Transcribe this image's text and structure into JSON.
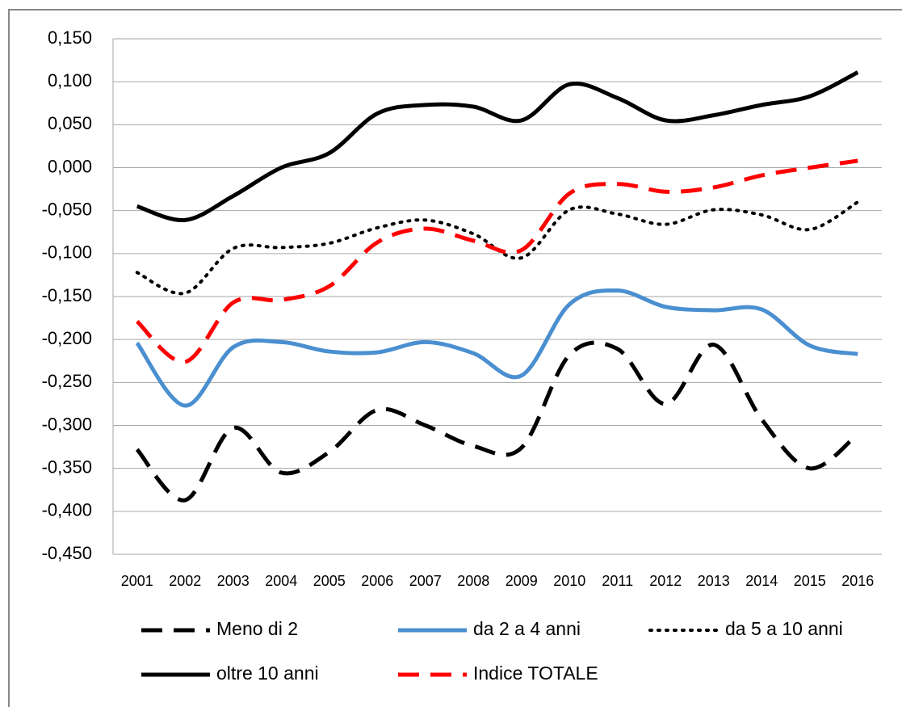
{
  "chart_data": {
    "type": "line",
    "categories": [
      "2001",
      "2002",
      "2003",
      "2004",
      "2005",
      "2006",
      "2007",
      "2008",
      "2009",
      "2010",
      "2011",
      "2012",
      "2013",
      "2014",
      "2015",
      "2016"
    ],
    "series": [
      {
        "name": "Meno di 2",
        "color": "#000000",
        "dash": "dashed",
        "values": [
          -0.328,
          -0.387,
          -0.303,
          -0.355,
          -0.331,
          -0.282,
          -0.3,
          -0.324,
          -0.326,
          -0.218,
          -0.211,
          -0.275,
          -0.206,
          -0.293,
          -0.35,
          -0.31
        ]
      },
      {
        "name": "da 2 a 4 anni",
        "color": "#4a8fd0",
        "dash": "solid",
        "values": [
          -0.204,
          -0.277,
          -0.209,
          -0.203,
          -0.214,
          -0.215,
          -0.203,
          -0.216,
          -0.242,
          -0.159,
          -0.143,
          -0.162,
          -0.166,
          -0.165,
          -0.207,
          -0.217
        ]
      },
      {
        "name": "da 5 a 10 anni",
        "color": "#000000",
        "dash": "dotted",
        "values": [
          -0.122,
          -0.146,
          -0.094,
          -0.093,
          -0.088,
          -0.07,
          -0.061,
          -0.077,
          -0.105,
          -0.049,
          -0.054,
          -0.066,
          -0.049,
          -0.055,
          -0.072,
          -0.04
        ]
      },
      {
        "name": "oltre 10 anni",
        "color": "#000000",
        "dash": "solid",
        "values": [
          -0.045,
          -0.061,
          -0.033,
          0.0,
          0.017,
          0.063,
          0.073,
          0.071,
          0.055,
          0.097,
          0.081,
          0.055,
          0.061,
          0.073,
          0.083,
          0.111
        ]
      },
      {
        "name": "Indice TOTALE",
        "color": "#ff0000",
        "dash": "dashed",
        "values": [
          -0.179,
          -0.226,
          -0.157,
          -0.154,
          -0.138,
          -0.087,
          -0.071,
          -0.085,
          -0.096,
          -0.03,
          -0.019,
          -0.028,
          -0.023,
          -0.009,
          0.0,
          0.008
        ]
      }
    ],
    "ylim": [
      -0.45,
      0.15
    ],
    "yticks": [
      {
        "value": 0.15,
        "label": "0,150"
      },
      {
        "value": 0.1,
        "label": "0,100"
      },
      {
        "value": 0.05,
        "label": "0,050"
      },
      {
        "value": 0,
        "label": "0,000"
      },
      {
        "value": -0.05,
        "label": "-0,050"
      },
      {
        "value": -0.1,
        "label": "-0,100"
      },
      {
        "value": -0.15,
        "label": "-0,150"
      },
      {
        "value": -0.2,
        "label": "-0,200"
      },
      {
        "value": -0.25,
        "label": "-0,250"
      },
      {
        "value": -0.3,
        "label": "-0,300"
      },
      {
        "value": -0.35,
        "label": "-0,350"
      },
      {
        "value": -0.4,
        "label": "-0,400"
      },
      {
        "value": -0.45,
        "label": "-0,450"
      }
    ],
    "grid": true,
    "legend": "bottom"
  }
}
